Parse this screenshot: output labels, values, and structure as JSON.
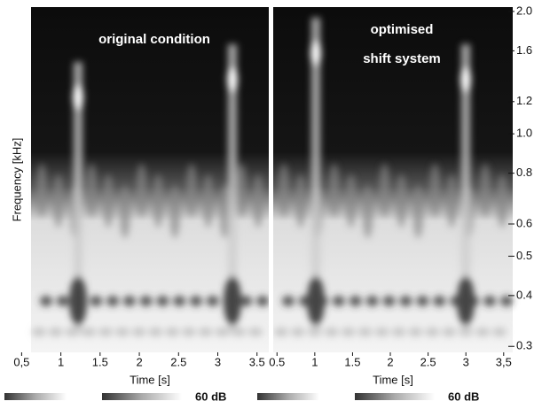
{
  "chart_data": [
    {
      "type": "spectrogram",
      "title": "original condition",
      "xlabel": "Time [s]",
      "ylabel": "Frequency [kHz]",
      "xlim": [
        0.62,
        3.65
      ],
      "xticks": [
        {
          "value": 0.5,
          "label": "0,5"
        },
        1,
        1.5,
        2,
        2.5,
        3,
        3.5
      ],
      "ylim": [
        0.29,
        2.05
      ],
      "ylog": true,
      "colorbar_label": "60 dB"
    },
    {
      "type": "spectrogram",
      "title_lines": [
        "optimised",
        "shift system"
      ],
      "xlabel": "Time [s]",
      "xlim": [
        0.45,
        3.62
      ],
      "xticks": [
        0.5,
        1,
        1.5,
        2,
        2.5,
        3,
        {
          "value": 3.5,
          "label": "3,5"
        }
      ],
      "ylim": [
        0.29,
        2.05
      ],
      "ylog": true,
      "yticks": [
        {
          "value": 2.0,
          "label": "2.0"
        },
        1.6,
        1.2,
        {
          "value": 1.0,
          "label": "1.0"
        },
        0.8,
        0.6,
        0.5,
        0.4,
        0.3
      ],
      "colorbar_label": "60 dB"
    }
  ]
}
